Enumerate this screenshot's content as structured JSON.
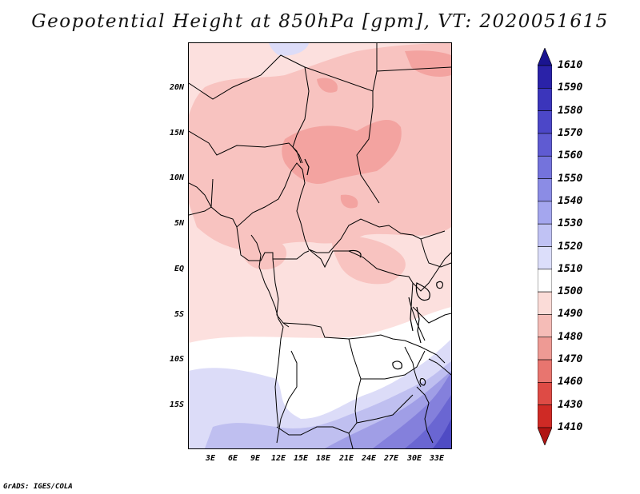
{
  "title": "Geopotential Height at 850hPa [gpm], VT: 2020051615",
  "footer": "GrADS: IGES/COLA",
  "map": {
    "lat_labels": [
      "20N",
      "15N",
      "10N",
      "5N",
      "EQ",
      "5S",
      "10S",
      "15S"
    ],
    "lon_labels": [
      "3E",
      "6E",
      "9E",
      "12E",
      "15E",
      "18E",
      "21E",
      "24E",
      "27E",
      "30E",
      "33E"
    ],
    "extent": {
      "lon_min": 0,
      "lon_max": 35,
      "lat_min": -20,
      "lat_max": 25
    }
  },
  "colorbar": {
    "labels": [
      "1610",
      "1590",
      "1580",
      "1570",
      "1560",
      "1550",
      "1540",
      "1530",
      "1520",
      "1510",
      "1500",
      "1490",
      "1480",
      "1470",
      "1460",
      "1430",
      "1410"
    ],
    "colors_top_to_bottom": [
      "#1a1490",
      "#2a22a8",
      "#3b35bb",
      "#4c47c8",
      "#5f5bd2",
      "#7473dc",
      "#8b8ce5",
      "#a4a6ee",
      "#c0c2f4",
      "#dcdefa",
      "#ffffff",
      "#fbdcd8",
      "#f5bcb7",
      "#ee9a94",
      "#e8756f",
      "#de4b45",
      "#cf2a25",
      "#b01513"
    ]
  },
  "field_colors": {
    "very_low_1480": "#f3a3a0",
    "low_1490": "#f8c3c0",
    "mid_1500": "#fce0de",
    "neutral_1510": "#ffffff",
    "high_1520": "#dcdcf8",
    "higher_1530": "#bfbff0",
    "high_1540": "#a09ee6",
    "high_1550": "#8480dc",
    "high_1560": "#6a66d2",
    "high_1570": "#4f4bc4"
  }
}
